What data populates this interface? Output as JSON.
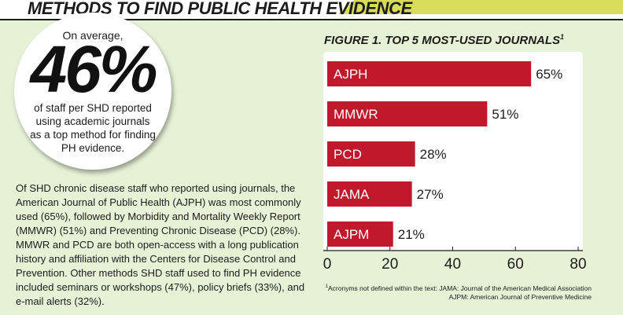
{
  "section_title": "METHODS TO FIND PUBLIC HEALTH EVIDENCE",
  "callout": {
    "intro": "On average,",
    "value": "46%",
    "description": "of staff per SHD reported using academic journals as a top method for finding PH evidence."
  },
  "body_text": "Of SHD chronic disease staff who reported using journals, the American Journal of Public Health (AJPH) was most commonly used (65%), followed by Morbidity and Mortality Weekly Report (MMWR) (51%) and Preventing Chronic Disease (PCD) (28%). MMWR and PCD are both open-access with a long publication history and affiliation with the Centers for Disease Control and Prevention. Other methods SHD staff used to find PH evidence included seminars or workshops (47%), policy briefs (33%), and e-mail alerts (32%).",
  "chart_data": {
    "type": "bar",
    "orientation": "horizontal",
    "title": "FIGURE 1. TOP 5 MOST-USED JOURNALS",
    "title_sup": "1",
    "categories": [
      "AJPH",
      "MMWR",
      "PCD",
      "JAMA",
      "AJPM"
    ],
    "values": [
      65,
      51,
      28,
      27,
      21
    ],
    "value_labels": [
      "65%",
      "51%",
      "28%",
      "27%",
      "21%"
    ],
    "xlim": [
      0,
      80
    ],
    "xticks": [
      0,
      20,
      40,
      60,
      80
    ],
    "grid": false,
    "bar_color": "#c0192b"
  },
  "footnote": {
    "sup": "1",
    "line1": "Acronyms not defined within the text: JAMA: Journal of the American Medical Association",
    "line2": "AJPM: American Journal of Preventive Medicine"
  },
  "colors": {
    "panel": "#e6f1d6",
    "accent": "#d7dc5a",
    "bar": "#c0192b",
    "text": "#1c1c1c"
  }
}
